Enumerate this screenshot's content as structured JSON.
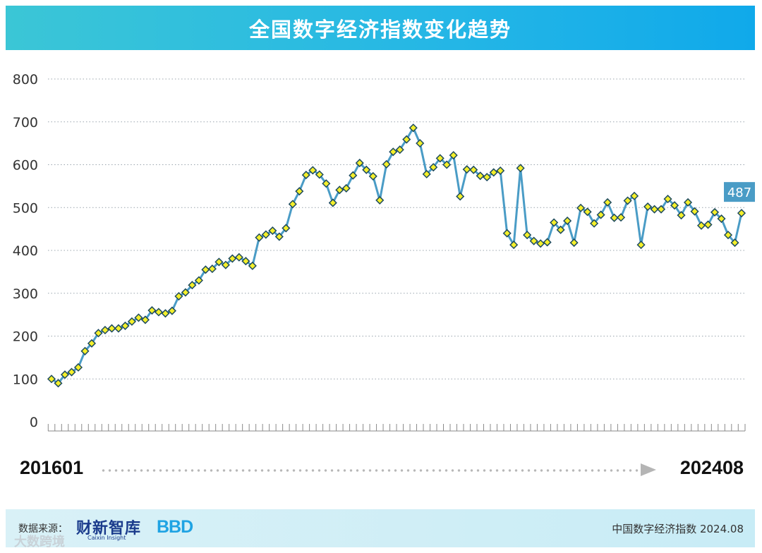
{
  "title": "全国数字经济指数变化趋势",
  "range": {
    "start": "201601",
    "end": "202408"
  },
  "footer": {
    "source_label": "数据来源：",
    "logo_primary": "财新智库",
    "logo_primary_sub": "Caixin Insight",
    "logo_secondary": "BBD",
    "note": "中国数字经济指数 2024.08"
  },
  "watermark": "大数跨境",
  "colors": {
    "line": "#4a9cc6",
    "marker_fill": "#f4ef2a",
    "marker_stroke": "#1d4a5e",
    "callout": "#4a9cc6",
    "title_bar": "#24b6e6"
  },
  "chart_data": {
    "type": "line",
    "ylim": [
      0,
      800
    ],
    "yticks": [
      "0",
      "100",
      "200",
      "300",
      "400",
      "500",
      "600",
      "700",
      "800"
    ],
    "grid": true,
    "start_period": "201601",
    "end_period": "202408",
    "last_label": "487",
    "series": [
      {
        "values": [
          100,
          90,
          110,
          116,
          127,
          165,
          183,
          207,
          214,
          218,
          218,
          224,
          234,
          243,
          238,
          260,
          256,
          253,
          259,
          293,
          302,
          319,
          330,
          355,
          357,
          373,
          366,
          381,
          384,
          375,
          364,
          430,
          437,
          446,
          432,
          452,
          508,
          538,
          576,
          587,
          577,
          556,
          511,
          541,
          545,
          575,
          604,
          588,
          573,
          517,
          601,
          630,
          635,
          659,
          686,
          650,
          578,
          594,
          615,
          600,
          622,
          526,
          589,
          588,
          574,
          571,
          582,
          586,
          440,
          413,
          592,
          436,
          422,
          416,
          419,
          465,
          448,
          469,
          418,
          499,
          490,
          463,
          483,
          512,
          476,
          477,
          516,
          527,
          413,
          502,
          496,
          496,
          520,
          505,
          482,
          512,
          491,
          458,
          460,
          489,
          474,
          436,
          418,
          487
        ]
      }
    ]
  }
}
